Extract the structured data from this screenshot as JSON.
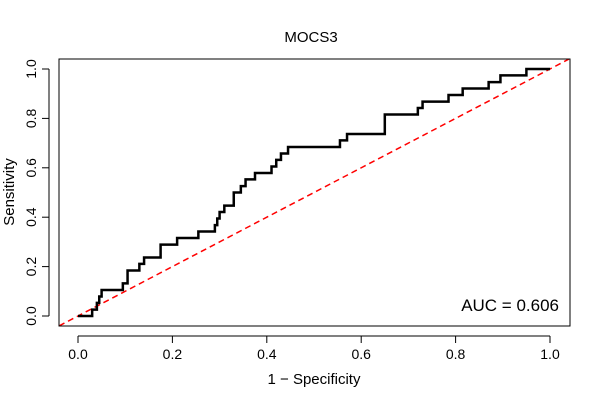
{
  "chart_data": {
    "type": "line",
    "title": "MOCS3",
    "xlabel": "1 − Specificity",
    "ylabel": "Sensitivity",
    "xlim": [
      0,
      1
    ],
    "ylim": [
      0,
      1
    ],
    "x_ticks": [
      "0.0",
      "0.2",
      "0.4",
      "0.6",
      "0.8",
      "1.0"
    ],
    "y_ticks": [
      "0.0",
      "0.2",
      "0.4",
      "0.6",
      "0.8",
      "1.0"
    ],
    "grid": false,
    "annotation": "AUC = 0.606",
    "series": [
      {
        "name": "ROC curve",
        "color": "#000000",
        "style": "step",
        "points": [
          [
            0.0,
            0.0
          ],
          [
            0.03,
            0.0
          ],
          [
            0.03,
            0.026
          ],
          [
            0.04,
            0.026
          ],
          [
            0.04,
            0.053
          ],
          [
            0.045,
            0.053
          ],
          [
            0.045,
            0.079
          ],
          [
            0.05,
            0.079
          ],
          [
            0.05,
            0.105
          ],
          [
            0.095,
            0.105
          ],
          [
            0.095,
            0.132
          ],
          [
            0.105,
            0.132
          ],
          [
            0.105,
            0.184
          ],
          [
            0.13,
            0.184
          ],
          [
            0.13,
            0.211
          ],
          [
            0.14,
            0.211
          ],
          [
            0.14,
            0.237
          ],
          [
            0.175,
            0.237
          ],
          [
            0.175,
            0.289
          ],
          [
            0.21,
            0.289
          ],
          [
            0.21,
            0.316
          ],
          [
            0.255,
            0.316
          ],
          [
            0.255,
            0.342
          ],
          [
            0.29,
            0.342
          ],
          [
            0.29,
            0.368
          ],
          [
            0.295,
            0.368
          ],
          [
            0.295,
            0.395
          ],
          [
            0.3,
            0.395
          ],
          [
            0.3,
            0.421
          ],
          [
            0.31,
            0.421
          ],
          [
            0.31,
            0.447
          ],
          [
            0.33,
            0.447
          ],
          [
            0.33,
            0.5
          ],
          [
            0.345,
            0.5
          ],
          [
            0.345,
            0.526
          ],
          [
            0.355,
            0.526
          ],
          [
            0.355,
            0.553
          ],
          [
            0.375,
            0.553
          ],
          [
            0.375,
            0.579
          ],
          [
            0.41,
            0.579
          ],
          [
            0.41,
            0.605
          ],
          [
            0.42,
            0.605
          ],
          [
            0.42,
            0.632
          ],
          [
            0.43,
            0.632
          ],
          [
            0.43,
            0.658
          ],
          [
            0.445,
            0.658
          ],
          [
            0.445,
            0.684
          ],
          [
            0.555,
            0.684
          ],
          [
            0.555,
            0.711
          ],
          [
            0.57,
            0.711
          ],
          [
            0.57,
            0.737
          ],
          [
            0.65,
            0.737
          ],
          [
            0.65,
            0.816
          ],
          [
            0.72,
            0.816
          ],
          [
            0.72,
            0.842
          ],
          [
            0.73,
            0.842
          ],
          [
            0.73,
            0.868
          ],
          [
            0.785,
            0.868
          ],
          [
            0.785,
            0.895
          ],
          [
            0.815,
            0.895
          ],
          [
            0.815,
            0.921
          ],
          [
            0.87,
            0.921
          ],
          [
            0.87,
            0.947
          ],
          [
            0.895,
            0.947
          ],
          [
            0.895,
            0.974
          ],
          [
            0.95,
            0.974
          ],
          [
            0.95,
            1.0
          ],
          [
            1.0,
            1.0
          ]
        ]
      },
      {
        "name": "Reference diagonal",
        "color": "#ff0000",
        "style": "dashed",
        "points": [
          [
            -0.04,
            -0.04
          ],
          [
            1.04,
            1.04
          ]
        ]
      }
    ]
  }
}
